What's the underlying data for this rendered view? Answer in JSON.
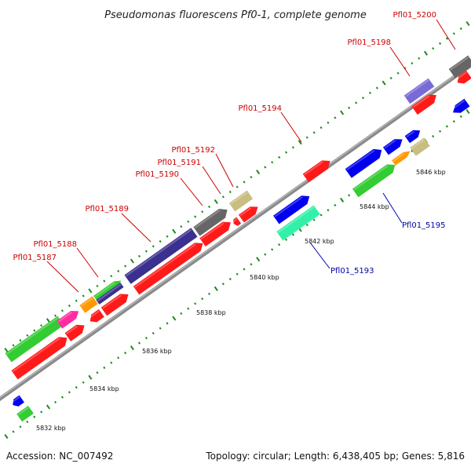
{
  "title": "Pseudomonas fluorescens Pf0-1, complete genome",
  "footer": {
    "accession": "Accession: NC_007492",
    "topology": "Topology: circular; Length: 6,438,405 bp; Genes: 5,816"
  },
  "scale_labels": [
    "5832 kbp",
    "5834 kbp",
    "5836 kbp",
    "5838 kbp",
    "5840 kbp",
    "5842 kbp",
    "5844 kbp",
    "5846 kbp"
  ],
  "gene_labels": {
    "outer": [
      "Pfl01_5187",
      "Pfl01_5188",
      "Pfl01_5189",
      "Pfl01_5190",
      "Pfl01_5191",
      "Pfl01_5192",
      "Pfl01_5194",
      "Pfl01_5198",
      "Pfl01_5200"
    ],
    "inner": [
      "Pfl01_5193",
      "Pfl01_5195"
    ]
  },
  "colors": {
    "backbone": "#8a8a8a",
    "outer_label": "#cc0000",
    "inner_label": "#0000aa",
    "tick_mark": "#1a8a1a",
    "red": "#ff1a1a",
    "green": "#33cc33",
    "blue": "#0000ee",
    "navy": "#3b2f8f",
    "gray": "#666666",
    "khaki": "#c8be82",
    "orange": "#ff9900",
    "magenta": "#ff2da0",
    "purple": "#7a6ad8",
    "aquamarine": "#33f0a8"
  }
}
